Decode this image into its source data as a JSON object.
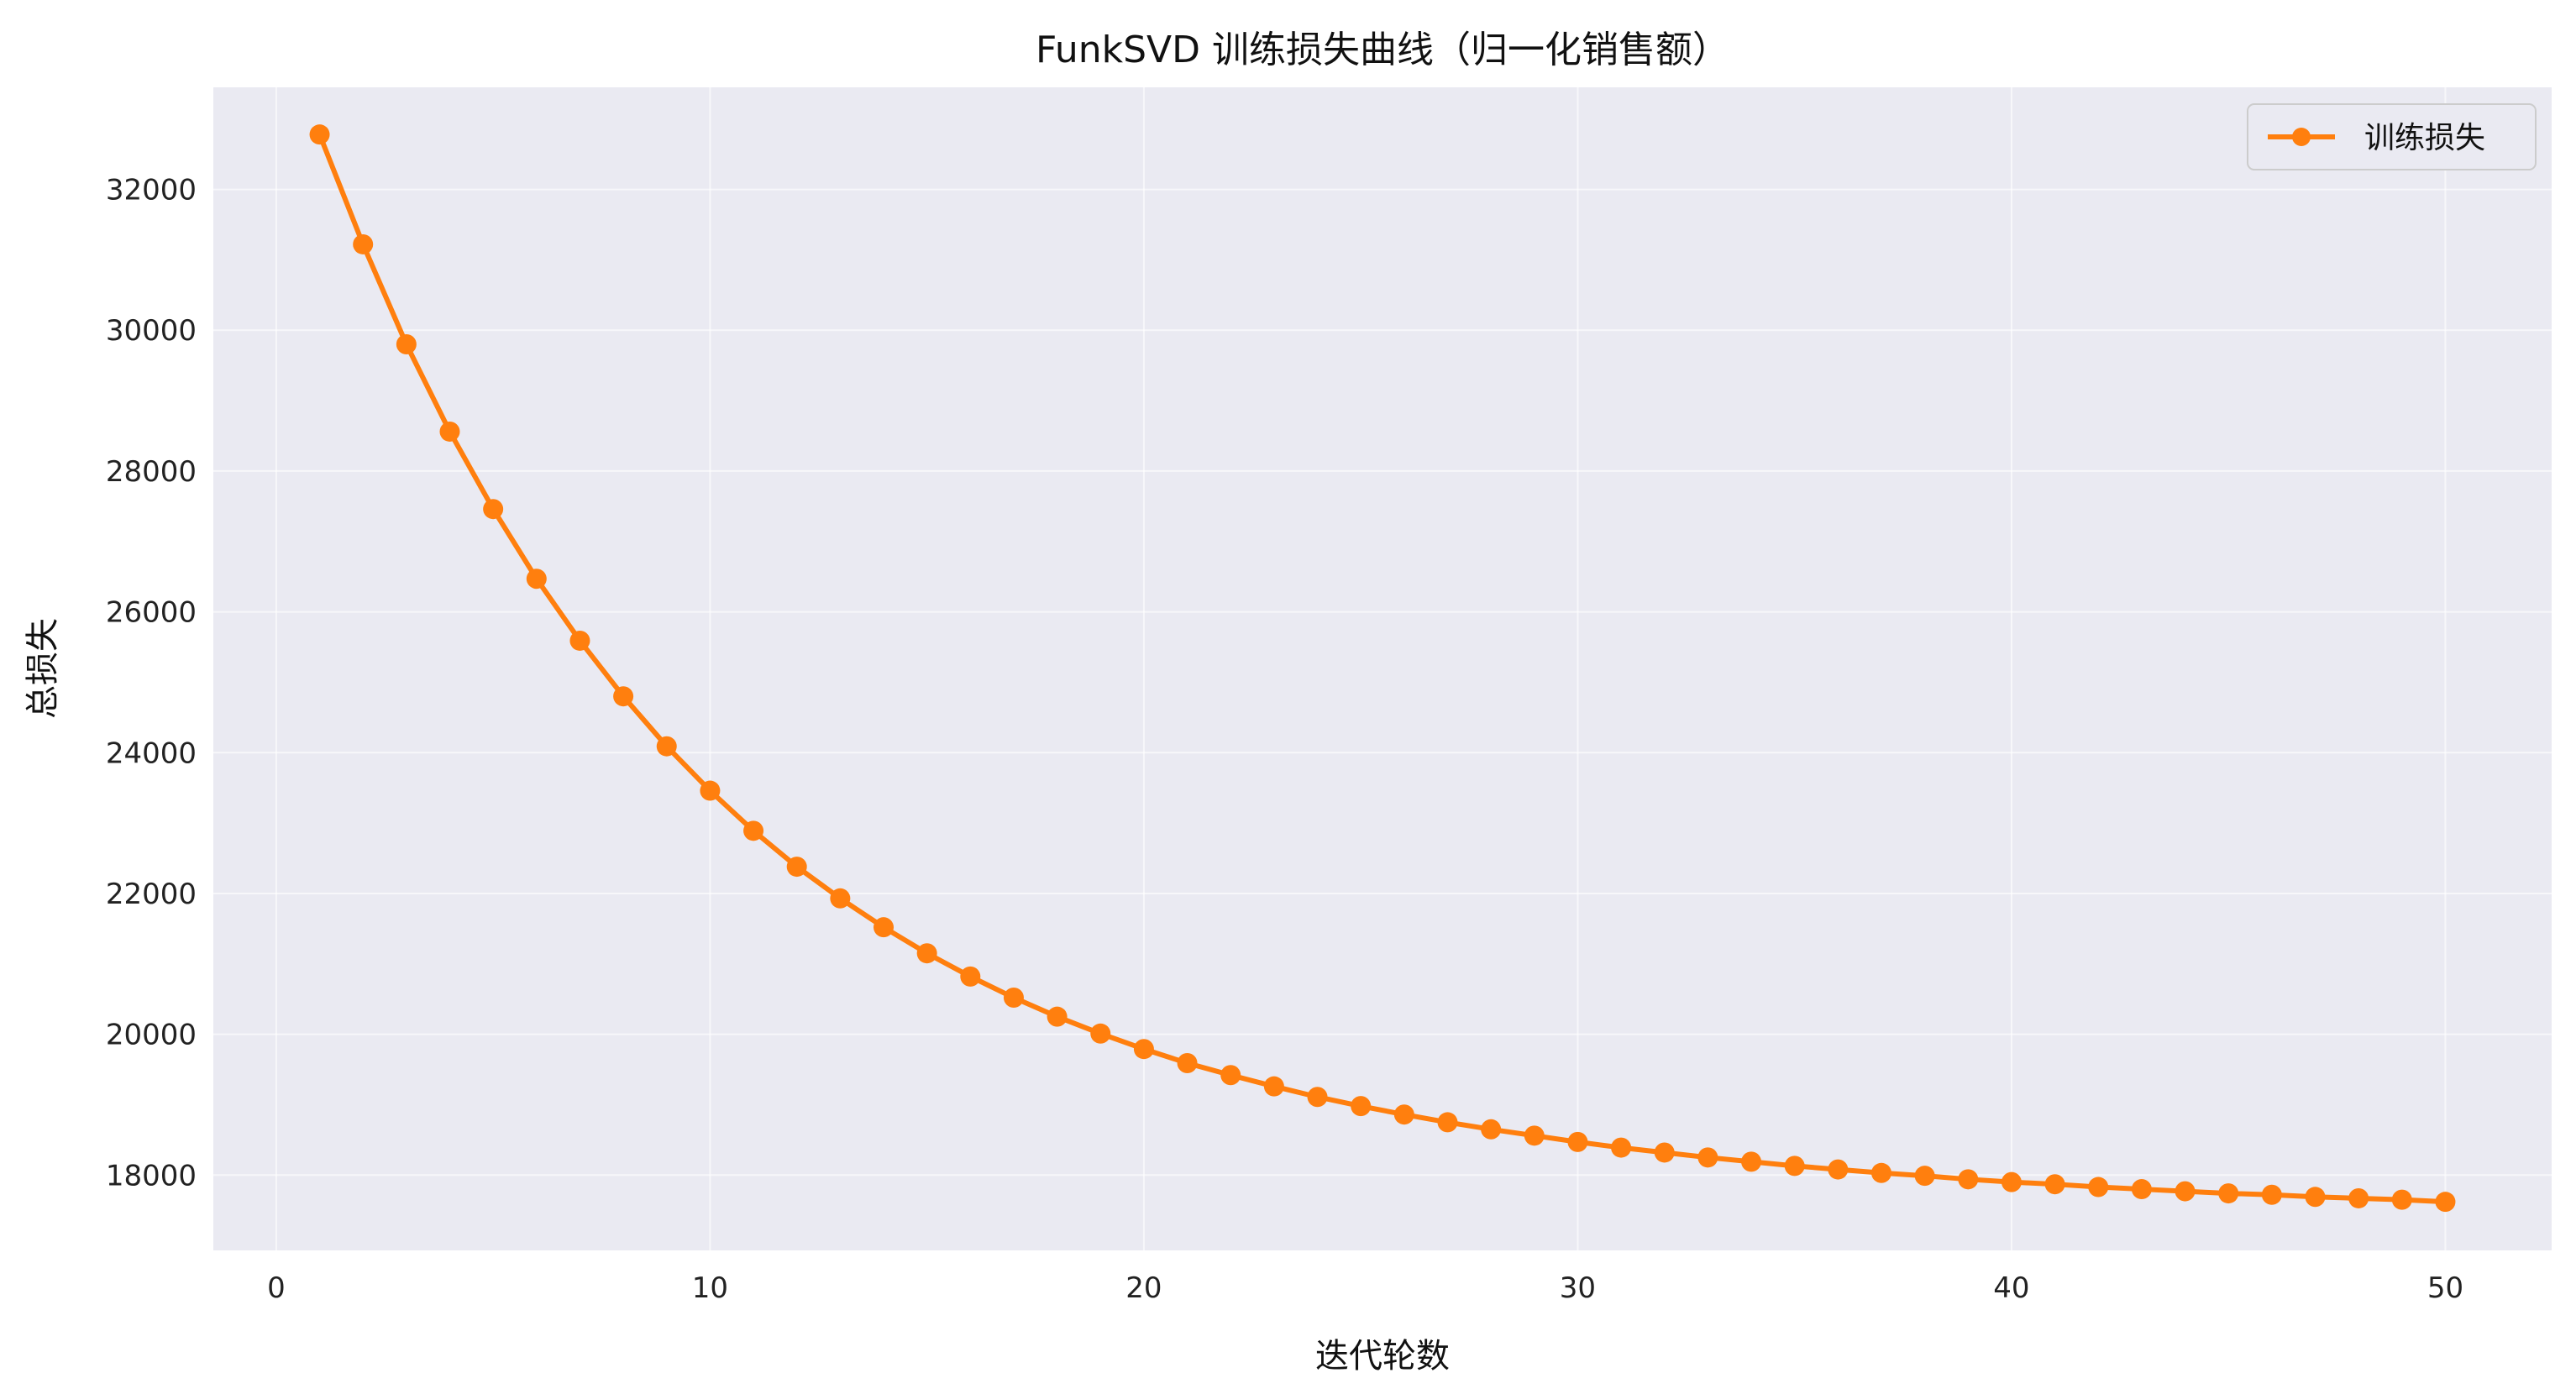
{
  "chart_data": {
    "type": "line",
    "title": "FunkSVD 训练损失曲线（归一化销售额）",
    "xlabel": "迭代轮数",
    "ylabel": "总损失",
    "xlim": [
      -1.45,
      52.45
    ],
    "ylim": [
      16930,
      33450
    ],
    "x_ticks": [
      0,
      10,
      20,
      30,
      40,
      50
    ],
    "y_ticks": [
      18000,
      20000,
      22000,
      24000,
      26000,
      28000,
      30000,
      32000
    ],
    "grid": true,
    "legend_position": "top-right",
    "series": [
      {
        "name": "训练损失",
        "color": "#ff7f0e",
        "marker": "circle",
        "x": [
          1,
          2,
          3,
          4,
          5,
          6,
          7,
          8,
          9,
          10,
          11,
          12,
          13,
          14,
          15,
          16,
          17,
          18,
          19,
          20,
          21,
          22,
          23,
          24,
          25,
          26,
          27,
          28,
          29,
          30,
          31,
          32,
          33,
          34,
          35,
          36,
          37,
          38,
          39,
          40,
          41,
          42,
          43,
          44,
          45,
          46,
          47,
          48,
          49,
          50
        ],
        "y": [
          32780,
          31220,
          29800,
          28560,
          27460,
          26470,
          25590,
          24800,
          24090,
          23460,
          22890,
          22380,
          21930,
          21520,
          21150,
          20820,
          20520,
          20250,
          20010,
          19790,
          19590,
          19420,
          19260,
          19110,
          18980,
          18860,
          18750,
          18650,
          18560,
          18470,
          18390,
          18320,
          18250,
          18190,
          18130,
          18080,
          18030,
          17990,
          17940,
          17900,
          17870,
          17830,
          17800,
          17770,
          17740,
          17720,
          17690,
          17670,
          17650,
          17620
        ]
      }
    ]
  },
  "colors": {
    "plot_background": "#eaeaf2",
    "grid": "#ffffff",
    "line": "#ff7f0e"
  }
}
